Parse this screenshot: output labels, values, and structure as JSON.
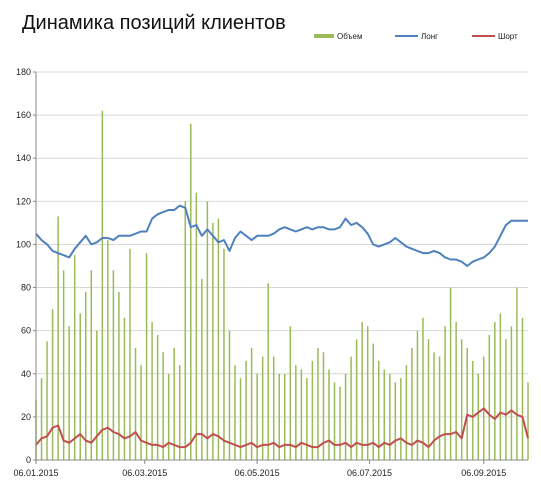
{
  "chart_data": {
    "type": "bar",
    "title": "Динамика позиций клиентов",
    "xlabel": "",
    "ylabel": "",
    "ylim": [
      0,
      180
    ],
    "y_ticks": [
      "0",
      "20",
      "40",
      "60",
      "80",
      "100",
      "120",
      "140",
      "160",
      "180"
    ],
    "x_range": [
      "2015-01-06",
      "2015-09-30"
    ],
    "x_tick_labels": [
      "06.01.2015",
      "06.03.2015",
      "06.05.2015",
      "06.07.2015",
      "06.09.2015"
    ],
    "x_tick_dates": [
      "2015-01-06",
      "2015-03-06",
      "2015-05-06",
      "2015-07-06",
      "2015-09-06"
    ],
    "grid": "horizontal",
    "legend_position": "top-right",
    "colors": {
      "volume": "#9bbb59",
      "long": "#4f81bd",
      "short": "#c0504d"
    },
    "series": [
      {
        "name": "Объем",
        "type": "bar",
        "x": [
          "2015-01-06",
          "2015-01-09",
          "2015-01-12",
          "2015-01-15",
          "2015-01-18",
          "2015-01-21",
          "2015-01-24",
          "2015-01-27",
          "2015-01-30",
          "2015-02-02",
          "2015-02-05",
          "2015-02-08",
          "2015-02-11",
          "2015-02-14",
          "2015-02-17",
          "2015-02-20",
          "2015-02-23",
          "2015-02-26",
          "2015-03-01",
          "2015-03-04",
          "2015-03-07",
          "2015-03-10",
          "2015-03-13",
          "2015-03-16",
          "2015-03-19",
          "2015-03-22",
          "2015-03-25",
          "2015-03-28",
          "2015-03-31",
          "2015-04-03",
          "2015-04-06",
          "2015-04-09",
          "2015-04-12",
          "2015-04-15",
          "2015-04-18",
          "2015-04-21",
          "2015-04-24",
          "2015-04-27",
          "2015-04-30",
          "2015-05-03",
          "2015-05-06",
          "2015-05-09",
          "2015-05-12",
          "2015-05-15",
          "2015-05-18",
          "2015-05-21",
          "2015-05-24",
          "2015-05-27",
          "2015-05-30",
          "2015-06-02",
          "2015-06-05",
          "2015-06-08",
          "2015-06-11",
          "2015-06-14",
          "2015-06-17",
          "2015-06-20",
          "2015-06-23",
          "2015-06-26",
          "2015-06-29",
          "2015-07-02",
          "2015-07-05",
          "2015-07-08",
          "2015-07-11",
          "2015-07-14",
          "2015-07-17",
          "2015-07-20",
          "2015-07-23",
          "2015-07-26",
          "2015-07-29",
          "2015-08-01",
          "2015-08-04",
          "2015-08-07",
          "2015-08-10",
          "2015-08-13",
          "2015-08-16",
          "2015-08-19",
          "2015-08-22",
          "2015-08-25",
          "2015-08-28",
          "2015-08-31",
          "2015-09-03",
          "2015-09-06",
          "2015-09-09",
          "2015-09-12",
          "2015-09-15",
          "2015-09-18",
          "2015-09-21",
          "2015-09-24",
          "2015-09-27",
          "2015-09-30"
        ],
        "values": [
          28,
          38,
          55,
          70,
          113,
          88,
          62,
          95,
          68,
          78,
          88,
          60,
          162,
          102,
          88,
          78,
          66,
          98,
          52,
          44,
          96,
          64,
          58,
          50,
          40,
          52,
          44,
          120,
          156,
          124,
          84,
          120,
          110,
          112,
          98,
          60,
          44,
          38,
          46,
          52,
          40,
          48,
          82,
          48,
          40,
          40,
          62,
          44,
          42,
          38,
          46,
          52,
          50,
          42,
          36,
          34,
          40,
          48,
          56,
          64,
          62,
          54,
          46,
          42,
          40,
          36,
          38,
          44,
          52,
          60,
          66,
          56,
          50,
          48,
          62,
          80,
          64,
          56,
          52,
          46,
          40,
          48,
          58,
          64,
          68,
          56,
          62,
          80,
          66,
          36
        ]
      },
      {
        "name": "Лонг",
        "type": "line",
        "x": [
          "2015-01-06",
          "2015-01-09",
          "2015-01-12",
          "2015-01-15",
          "2015-01-18",
          "2015-01-21",
          "2015-01-24",
          "2015-01-27",
          "2015-01-30",
          "2015-02-02",
          "2015-02-05",
          "2015-02-08",
          "2015-02-11",
          "2015-02-14",
          "2015-02-17",
          "2015-02-20",
          "2015-02-23",
          "2015-02-26",
          "2015-03-01",
          "2015-03-04",
          "2015-03-07",
          "2015-03-10",
          "2015-03-13",
          "2015-03-16",
          "2015-03-19",
          "2015-03-22",
          "2015-03-25",
          "2015-03-28",
          "2015-03-31",
          "2015-04-03",
          "2015-04-06",
          "2015-04-09",
          "2015-04-12",
          "2015-04-15",
          "2015-04-18",
          "2015-04-21",
          "2015-04-24",
          "2015-04-27",
          "2015-04-30",
          "2015-05-03",
          "2015-05-06",
          "2015-05-09",
          "2015-05-12",
          "2015-05-15",
          "2015-05-18",
          "2015-05-21",
          "2015-05-24",
          "2015-05-27",
          "2015-05-30",
          "2015-06-02",
          "2015-06-05",
          "2015-06-08",
          "2015-06-11",
          "2015-06-14",
          "2015-06-17",
          "2015-06-20",
          "2015-06-23",
          "2015-06-26",
          "2015-06-29",
          "2015-07-02",
          "2015-07-05",
          "2015-07-08",
          "2015-07-11",
          "2015-07-14",
          "2015-07-17",
          "2015-07-20",
          "2015-07-23",
          "2015-07-26",
          "2015-07-29",
          "2015-08-01",
          "2015-08-04",
          "2015-08-07",
          "2015-08-10",
          "2015-08-13",
          "2015-08-16",
          "2015-08-19",
          "2015-08-22",
          "2015-08-25",
          "2015-08-28",
          "2015-08-31",
          "2015-09-03",
          "2015-09-06",
          "2015-09-09",
          "2015-09-12",
          "2015-09-15",
          "2015-09-18",
          "2015-09-21",
          "2015-09-24",
          "2015-09-27",
          "2015-09-30"
        ],
        "values": [
          105,
          102,
          100,
          97,
          96,
          95,
          94,
          98,
          101,
          104,
          100,
          101,
          103,
          103,
          102,
          104,
          104,
          104,
          105,
          106,
          106,
          112,
          114,
          115,
          116,
          116,
          118,
          117,
          108,
          109,
          104,
          107,
          104,
          101,
          102,
          97,
          103,
          106,
          104,
          102,
          104,
          104,
          104,
          105,
          107,
          108,
          107,
          106,
          107,
          108,
          107,
          108,
          108,
          107,
          107,
          108,
          112,
          109,
          110,
          108,
          105,
          100,
          99,
          100,
          101,
          103,
          101,
          99,
          98,
          97,
          96,
          96,
          97,
          96,
          94,
          93,
          93,
          92,
          90,
          92,
          93,
          94,
          96,
          99,
          104,
          109,
          111,
          111,
          111,
          111
        ]
      },
      {
        "name": "Шорт",
        "type": "line",
        "x": [
          "2015-01-06",
          "2015-01-09",
          "2015-01-12",
          "2015-01-15",
          "2015-01-18",
          "2015-01-21",
          "2015-01-24",
          "2015-01-27",
          "2015-01-30",
          "2015-02-02",
          "2015-02-05",
          "2015-02-08",
          "2015-02-11",
          "2015-02-14",
          "2015-02-17",
          "2015-02-20",
          "2015-02-23",
          "2015-02-26",
          "2015-03-01",
          "2015-03-04",
          "2015-03-07",
          "2015-03-10",
          "2015-03-13",
          "2015-03-16",
          "2015-03-19",
          "2015-03-22",
          "2015-03-25",
          "2015-03-28",
          "2015-03-31",
          "2015-04-03",
          "2015-04-06",
          "2015-04-09",
          "2015-04-12",
          "2015-04-15",
          "2015-04-18",
          "2015-04-21",
          "2015-04-24",
          "2015-04-27",
          "2015-04-30",
          "2015-05-03",
          "2015-05-06",
          "2015-05-09",
          "2015-05-12",
          "2015-05-15",
          "2015-05-18",
          "2015-05-21",
          "2015-05-24",
          "2015-05-27",
          "2015-05-30",
          "2015-06-02",
          "2015-06-05",
          "2015-06-08",
          "2015-06-11",
          "2015-06-14",
          "2015-06-17",
          "2015-06-20",
          "2015-06-23",
          "2015-06-26",
          "2015-06-29",
          "2015-07-02",
          "2015-07-05",
          "2015-07-08",
          "2015-07-11",
          "2015-07-14",
          "2015-07-17",
          "2015-07-20",
          "2015-07-23",
          "2015-07-26",
          "2015-07-29",
          "2015-08-01",
          "2015-08-04",
          "2015-08-07",
          "2015-08-10",
          "2015-08-13",
          "2015-08-16",
          "2015-08-19",
          "2015-08-22",
          "2015-08-25",
          "2015-08-28",
          "2015-08-31",
          "2015-09-03",
          "2015-09-06",
          "2015-09-09",
          "2015-09-12",
          "2015-09-15",
          "2015-09-18",
          "2015-09-21",
          "2015-09-24",
          "2015-09-27",
          "2015-09-30"
        ],
        "values": [
          7,
          10,
          11,
          15,
          16,
          9,
          8,
          10,
          12,
          9,
          8,
          11,
          14,
          15,
          13,
          12,
          10,
          11,
          13,
          9,
          8,
          7,
          7,
          6,
          8,
          7,
          6,
          6,
          8,
          12,
          12,
          10,
          12,
          11,
          9,
          8,
          7,
          6,
          7,
          8,
          6,
          7,
          7,
          8,
          6,
          7,
          7,
          6,
          8,
          7,
          6,
          6,
          8,
          9,
          7,
          7,
          8,
          6,
          8,
          7,
          7,
          8,
          6,
          8,
          7,
          9,
          10,
          8,
          7,
          9,
          8,
          6,
          9,
          11,
          12,
          12,
          13,
          10,
          21,
          20,
          22,
          24,
          21,
          19,
          22,
          21,
          23,
          21,
          20,
          10
        ]
      }
    ]
  }
}
